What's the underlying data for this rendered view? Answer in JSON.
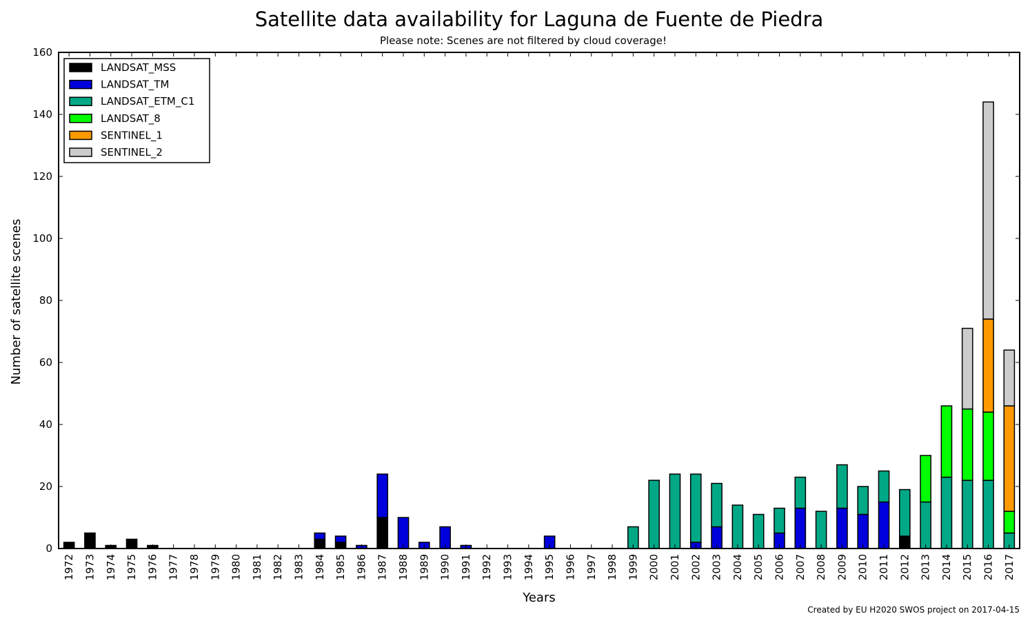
{
  "chart_data": {
    "type": "bar",
    "stacked": true,
    "title": "Satellite data availability for Laguna de Fuente de Piedra",
    "subtitle": "Please note: Scenes are not filtered by cloud coverage!",
    "xlabel": "Years",
    "ylabel": "Number of satellite scenes",
    "ylim": [
      0,
      160
    ],
    "yticks": [
      0,
      20,
      40,
      60,
      80,
      100,
      120,
      140,
      160
    ],
    "grid": false,
    "legend_position": "top-left",
    "credit": "Created by EU H2020 SWOS project on 2017-04-15",
    "categories": [
      "1972",
      "1973",
      "1974",
      "1975",
      "1976",
      "1977",
      "1978",
      "1979",
      "1980",
      "1981",
      "1982",
      "1983",
      "1984",
      "1985",
      "1986",
      "1987",
      "1988",
      "1989",
      "1990",
      "1991",
      "1992",
      "1993",
      "1994",
      "1995",
      "1996",
      "1997",
      "1998",
      "1999",
      "2000",
      "2001",
      "2002",
      "2003",
      "2004",
      "2005",
      "2006",
      "2007",
      "2008",
      "2009",
      "2010",
      "2011",
      "2012",
      "2013",
      "2014",
      "2015",
      "2016",
      "2017"
    ],
    "series": [
      {
        "name": "LANDSAT_MSS",
        "color": "#000000",
        "values": [
          2,
          5,
          1,
          3,
          1,
          0,
          0,
          0,
          0,
          0,
          0,
          0,
          3,
          2,
          0,
          10,
          0,
          0,
          0,
          0,
          0,
          0,
          0,
          0,
          0,
          0,
          0,
          0,
          0,
          0,
          0,
          0,
          0,
          0,
          0,
          0,
          0,
          0,
          0,
          0,
          4,
          0,
          0,
          0,
          0,
          0
        ]
      },
      {
        "name": "LANDSAT_TM",
        "color": "#0000dd",
        "values": [
          0,
          0,
          0,
          0,
          0,
          0,
          0,
          0,
          0,
          0,
          0,
          0,
          2,
          2,
          1,
          14,
          10,
          2,
          7,
          1,
          0,
          0,
          0,
          4,
          0,
          0,
          0,
          0,
          0,
          0,
          2,
          7,
          0,
          0,
          5,
          13,
          0,
          13,
          11,
          15,
          0,
          0,
          0,
          0,
          0,
          0
        ]
      },
      {
        "name": "LANDSAT_ETM_C1",
        "color": "#00a886",
        "values": [
          0,
          0,
          0,
          0,
          0,
          0,
          0,
          0,
          0,
          0,
          0,
          0,
          0,
          0,
          0,
          0,
          0,
          0,
          0,
          0,
          0,
          0,
          0,
          0,
          0,
          0,
          0,
          7,
          22,
          24,
          22,
          14,
          14,
          11,
          8,
          10,
          12,
          14,
          9,
          10,
          15,
          15,
          23,
          22,
          22,
          5
        ]
      },
      {
        "name": "LANDSAT_8",
        "color": "#00ff00",
        "values": [
          0,
          0,
          0,
          0,
          0,
          0,
          0,
          0,
          0,
          0,
          0,
          0,
          0,
          0,
          0,
          0,
          0,
          0,
          0,
          0,
          0,
          0,
          0,
          0,
          0,
          0,
          0,
          0,
          0,
          0,
          0,
          0,
          0,
          0,
          0,
          0,
          0,
          0,
          0,
          0,
          0,
          15,
          23,
          23,
          22,
          7
        ]
      },
      {
        "name": "SENTINEL_1",
        "color": "#ff9900",
        "values": [
          0,
          0,
          0,
          0,
          0,
          0,
          0,
          0,
          0,
          0,
          0,
          0,
          0,
          0,
          0,
          0,
          0,
          0,
          0,
          0,
          0,
          0,
          0,
          0,
          0,
          0,
          0,
          0,
          0,
          0,
          0,
          0,
          0,
          0,
          0,
          0,
          0,
          0,
          0,
          0,
          0,
          0,
          0,
          0,
          30,
          34
        ]
      },
      {
        "name": "SENTINEL_2",
        "color": "#cccccc",
        "values": [
          0,
          0,
          0,
          0,
          0,
          0,
          0,
          0,
          0,
          0,
          0,
          0,
          0,
          0,
          0,
          0,
          0,
          0,
          0,
          0,
          0,
          0,
          0,
          0,
          0,
          0,
          0,
          0,
          0,
          0,
          0,
          0,
          0,
          0,
          0,
          0,
          0,
          0,
          0,
          0,
          0,
          0,
          0,
          26,
          70,
          18
        ]
      }
    ]
  }
}
